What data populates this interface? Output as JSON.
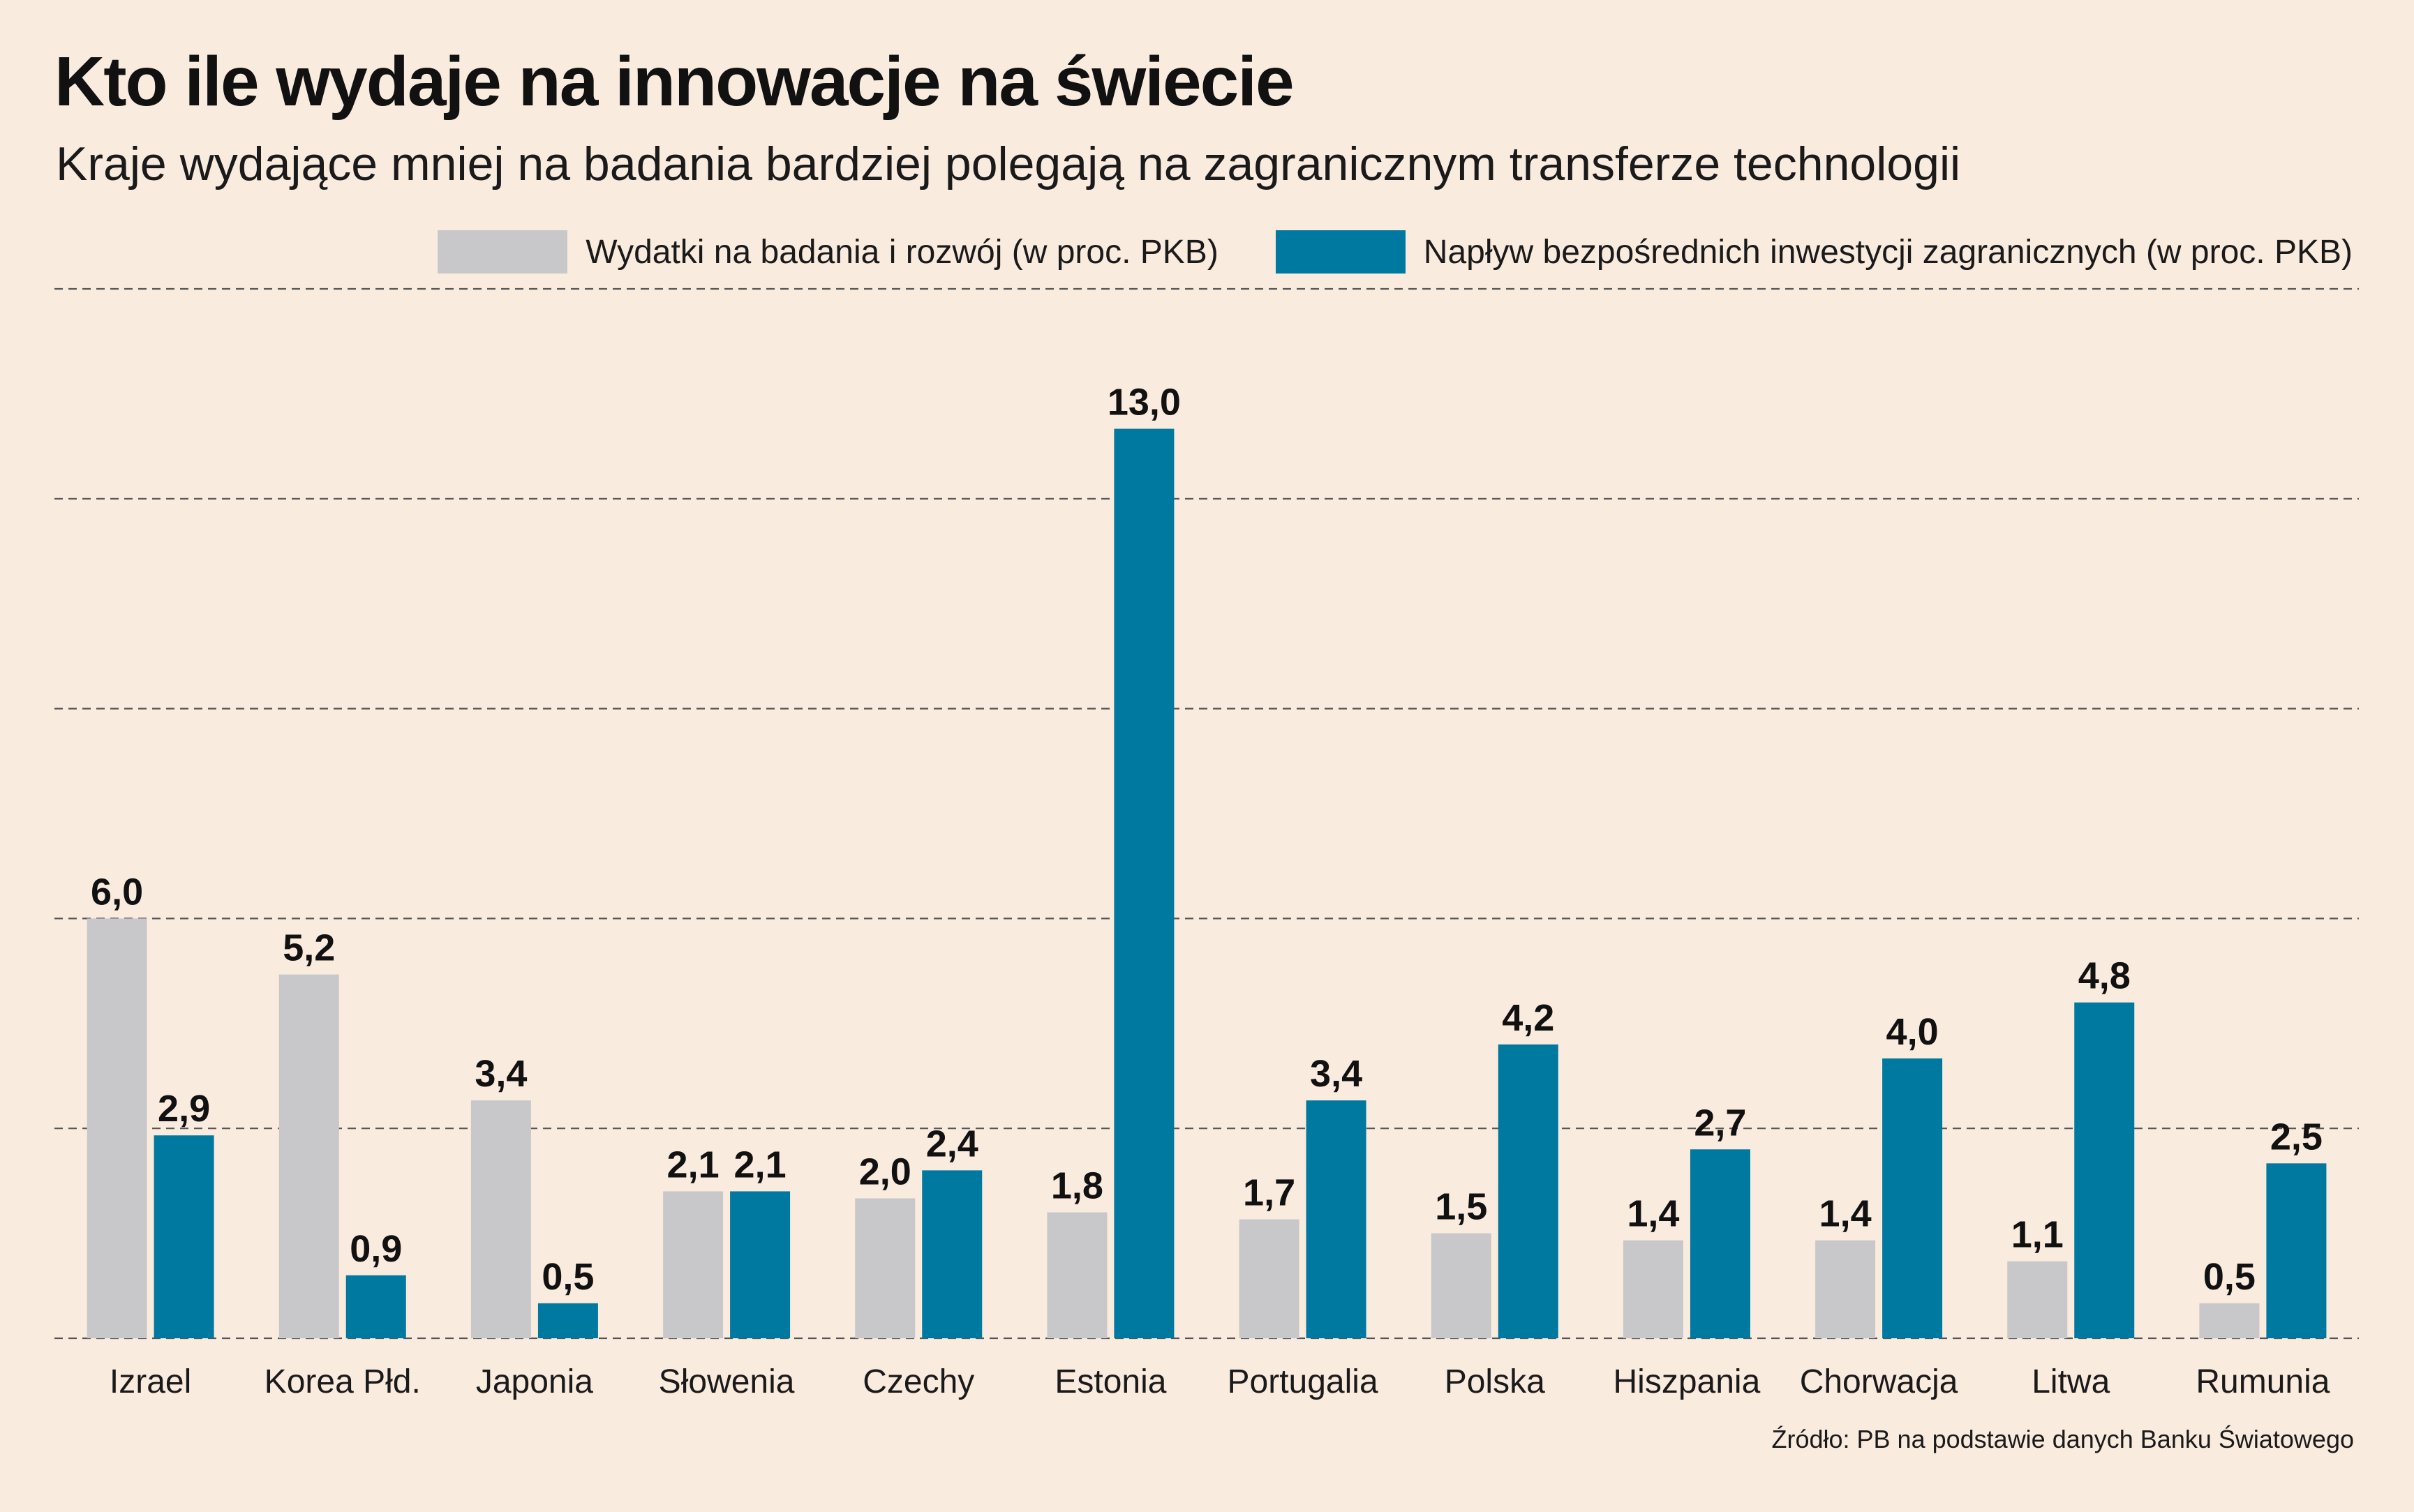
{
  "title": "Kto ile wydaje na innowacje na świecie",
  "subtitle": "Kraje wydające mniej na badania bardziej polegają na zagranicznym transferze technologii",
  "source": "Źródło: PB na podstawie danych Banku Światowego",
  "colors": {
    "background": "#faebdf",
    "rd": "#c8c8ca",
    "fdi": "#0079a0",
    "grid": "#555555"
  },
  "chart_data": {
    "type": "bar",
    "categories": [
      "Izrael",
      "Korea Płd.",
      "Japonia",
      "Słowenia",
      "Czechy",
      "Estonia",
      "Portugalia",
      "Polska",
      "Hiszpania",
      "Chorwacja",
      "Litwa",
      "Rumunia"
    ],
    "series": [
      {
        "name": "Wydatki na badania i rozwój (w proc. PKB)",
        "values": [
          6.0,
          5.2,
          3.4,
          2.1,
          2.0,
          1.8,
          1.7,
          1.5,
          1.4,
          1.4,
          1.1,
          0.5
        ],
        "labels": [
          "6,0",
          "5,2",
          "3,4",
          "2,1",
          "2,0",
          "1,8",
          "1,7",
          "1,5",
          "1,4",
          "1,4",
          "1,1",
          "0,5"
        ],
        "color": "#c8c8ca"
      },
      {
        "name": "Napływ bezpośrednich inwestycji zagranicznych (w proc. PKB)",
        "values": [
          2.9,
          0.9,
          0.5,
          2.1,
          2.4,
          13.0,
          3.4,
          4.2,
          2.7,
          4.0,
          4.8,
          2.5
        ],
        "labels": [
          "2,9",
          "0,9",
          "0,5",
          "2,1",
          "2,4",
          "13,0",
          "3,4",
          "4,2",
          "2,7",
          "4,0",
          "4,8",
          "2,5"
        ],
        "color": "#0079a0"
      }
    ],
    "ylim": [
      0,
      15
    ],
    "gridlines": [
      0,
      3,
      6,
      9,
      12,
      15
    ],
    "grid": true,
    "legend_position": "top-right"
  }
}
